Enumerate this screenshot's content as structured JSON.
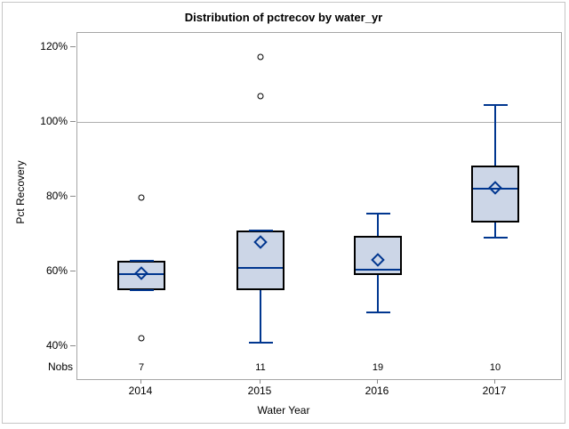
{
  "chart_data": {
    "type": "boxplot",
    "title": "Distribution of pctrecov by water_yr",
    "xlabel": "Water Year",
    "ylabel": "Pct Recovery",
    "nobs_label": "Nobs",
    "categories": [
      "2014",
      "2015",
      "2016",
      "2017"
    ],
    "nobs": [
      "7",
      "11",
      "19",
      "10"
    ],
    "y_ticks": [
      40,
      60,
      80,
      100,
      120
    ],
    "y_tick_labels": [
      "40%",
      "60%",
      "80%",
      "100%",
      "120%"
    ],
    "ylim": [
      36,
      124
    ],
    "reference_line": 100,
    "grid": "horizontal reference line at 100% only",
    "legend_position": "none",
    "series": [
      {
        "category": "2014",
        "n": 7,
        "whisker_low": 55,
        "q1": 55,
        "median": 59.3,
        "mean": 59.5,
        "q3": 62.8,
        "whisker_high": 62.8,
        "outliers": [
          79.7,
          42.1
        ]
      },
      {
        "category": "2015",
        "n": 11,
        "whisker_low": 41,
        "q1": 55,
        "median": 61,
        "mean": 67.8,
        "q3": 71,
        "whisker_high": 71,
        "outliers": [
          117.3,
          106.8
        ]
      },
      {
        "category": "2016",
        "n": 19,
        "whisker_low": 49,
        "q1": 59,
        "median": 60.5,
        "mean": 63,
        "q3": 69.5,
        "whisker_high": 75.5,
        "outliers": []
      },
      {
        "category": "2017",
        "n": 10,
        "whisker_low": 69,
        "q1": 73.2,
        "median": 82.2,
        "mean": 82.5,
        "q3": 88.4,
        "whisker_high": 104.5,
        "outliers": []
      }
    ],
    "colors": {
      "box_fill": "#ccd6e7",
      "box_border": "#000000",
      "line_blue": "#00368f",
      "outlier_stroke": "#000000",
      "frame_gray": "#a6a6a6",
      "reference_gray": "#aeaeae",
      "tick_gray": "#8a8a8a",
      "background": "#ffffff",
      "text": "#000000"
    }
  }
}
